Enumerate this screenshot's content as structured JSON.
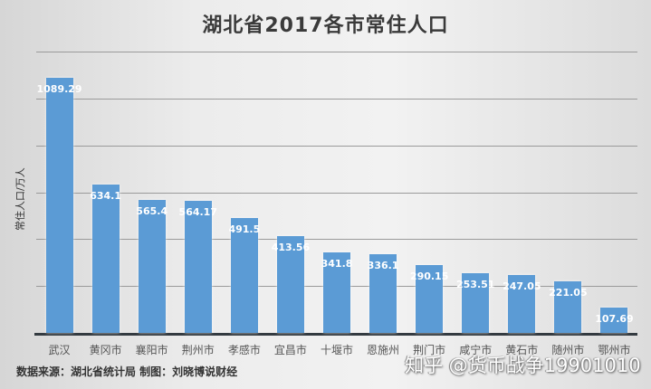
{
  "chart_data": {
    "type": "bar",
    "title": "湖北省2017各市常住人口",
    "xlabel": "",
    "ylabel": "常住人口/万人",
    "ylim": [
      0,
      1200
    ],
    "grid": true,
    "gridline_step": 200,
    "legend": "none",
    "categories": [
      "武汉",
      "黄冈市",
      "襄阳市",
      "荆州市",
      "孝感市",
      "宜昌市",
      "十堰市",
      "恩施州",
      "荆门市",
      "咸宁市",
      "黄石市",
      "随州市",
      "鄂州市"
    ],
    "values": [
      1089.29,
      634.1,
      565.4,
      564.17,
      491.5,
      413.56,
      341.8,
      336.1,
      290.15,
      253.51,
      247.05,
      221.05,
      107.69
    ],
    "value_labels": [
      "1089.29",
      "634.1",
      "565.4",
      "564.17",
      "491.5",
      "413.56",
      "341.8",
      "336.1",
      "290.15",
      "253.51",
      "247.05",
      "221.05",
      "107.69"
    ],
    "bar_color": "#5b9bd5"
  },
  "footer": {
    "source": "数据来源：湖北省统计局 制图：刘晓博说财经",
    "watermark": "知乎 @货币战争19901010"
  }
}
